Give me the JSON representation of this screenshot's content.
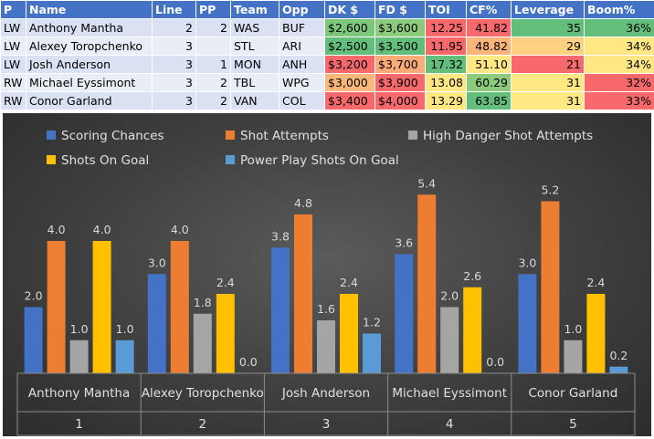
{
  "table": {
    "headers": [
      "P",
      "Name",
      "Line",
      "PP",
      "Team",
      "Opp",
      "DK $",
      "FD $",
      "TOI",
      "CF%",
      "Leverage",
      "Boom%"
    ],
    "rows": [
      [
        "LW",
        "Anthony Mantha",
        "2",
        "2",
        "WAS",
        "BUF",
        "$2,600",
        "$3,600",
        "12.25",
        "41.82",
        "35",
        "36%"
      ],
      [
        "LW",
        "Alexey Toropchenko",
        "3",
        "",
        "STL",
        "ARI",
        "$2,500",
        "$3,500",
        "11.95",
        "48.82",
        "29",
        "34%"
      ],
      [
        "LW",
        "Josh Anderson",
        "3",
        "1",
        "MON",
        "ANH",
        "$3,200",
        "$3,700",
        "17.32",
        "51.10",
        "21",
        "34%"
      ],
      [
        "RW",
        "Michael Eyssimont",
        "3",
        "2",
        "TBL",
        "WPG",
        "$3,000",
        "$3,900",
        "13.08",
        "60.29",
        "31",
        "32%"
      ],
      [
        "RW",
        "Conor Garland",
        "3",
        "2",
        "VAN",
        "COL",
        "$3,400",
        "$4,000",
        "13.29",
        "63.85",
        "31",
        "33%"
      ]
    ],
    "cell_colors": [
      [
        "",
        "",
        "",
        "",
        "",
        "",
        "#7dc67c",
        "#8ccb7d",
        "#f8696b",
        "#f8696b",
        "#63be7b",
        "#63be7b"
      ],
      [
        "",
        "",
        "",
        "",
        "",
        "",
        "#63be7b",
        "#63be7b",
        "#f8696b",
        "#fbb47a",
        "#fdd17f",
        "#ffe884"
      ],
      [
        "",
        "",
        "",
        "",
        "",
        "",
        "#f8696b",
        "#fcaa78",
        "#63be7b",
        "#ffe884",
        "#f8696b",
        "#ffe884"
      ],
      [
        "",
        "",
        "",
        "",
        "",
        "",
        "#fcb77a",
        "#f8696b",
        "#ffe884",
        "#8ccb7d",
        "#ffe884",
        "#f8696b"
      ],
      [
        "",
        "",
        "",
        "",
        "",
        "",
        "#f8696b",
        "#f8696b",
        "#ffe884",
        "#63be7b",
        "#ffe884",
        "#f8696b"
      ]
    ]
  },
  "chart_data": {
    "type": "bar",
    "categories": [
      "Anthony Mantha",
      "Alexey Toropchenko",
      "Josh Anderson",
      "Michael Eyssimont",
      "Conor Garland"
    ],
    "category_numbers": [
      "1",
      "2",
      "3",
      "4",
      "5"
    ],
    "series": [
      {
        "name": "Scoring Chances",
        "values": [
          2.0,
          3.0,
          3.8,
          3.6,
          3.0
        ],
        "color": "#4472c4"
      },
      {
        "name": "Shot Attempts",
        "values": [
          4.0,
          4.0,
          4.8,
          5.4,
          5.2
        ],
        "color": "#ed7d31"
      },
      {
        "name": "High Danger Shot Attempts",
        "values": [
          1.0,
          1.8,
          1.6,
          2.0,
          1.0
        ],
        "color": "#a5a5a5"
      },
      {
        "name": "Shots On Goal",
        "values": [
          4.0,
          2.4,
          2.4,
          2.6,
          2.4
        ],
        "color": "#ffc000"
      },
      {
        "name": "Power Play Shots On Goal",
        "values": [
          1.0,
          0.0,
          1.2,
          0.0,
          0.2
        ],
        "color": "#5b9bd5"
      }
    ],
    "value_labels": [
      [
        "2.0",
        "3.0",
        "3.8",
        "3.6",
        "3.0"
      ],
      [
        "4.0",
        "4.0",
        "4.8",
        "5.4",
        "5.2"
      ],
      [
        "1.0",
        "1.8",
        "1.6",
        "2.0",
        "1.0"
      ],
      [
        "4.0",
        "2.4",
        "2.4",
        "2.6",
        "2.4"
      ],
      [
        "1.0",
        "0.0",
        "1.2",
        "0.0",
        "0.2"
      ]
    ],
    "legend_position": "top",
    "grid": false,
    "ylim": [
      0,
      5.6
    ],
    "title": "",
    "xlabel": "",
    "ylabel": ""
  }
}
